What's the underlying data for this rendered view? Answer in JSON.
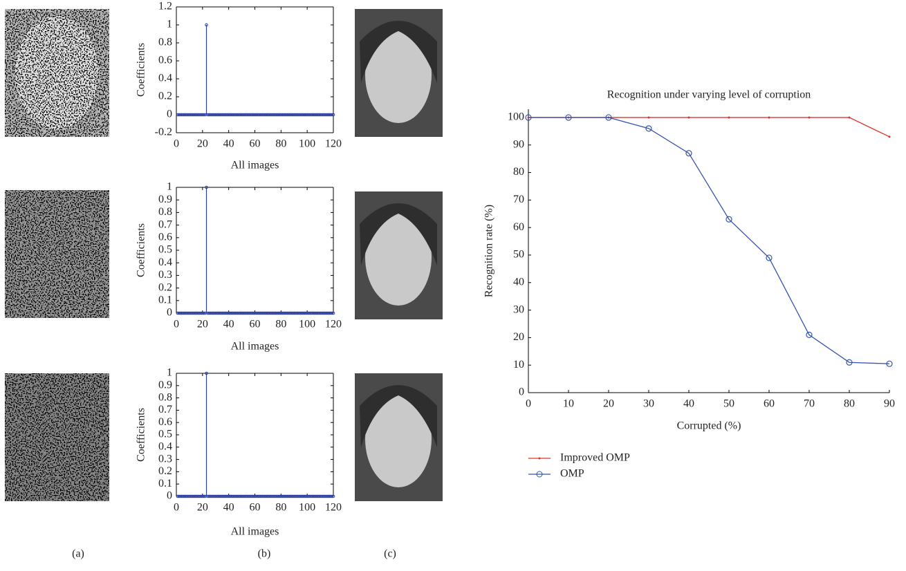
{
  "panel_labels": [
    "(a)",
    "(b)",
    "(c)"
  ],
  "chart_data": [
    {
      "type": "stem",
      "ylabel": "Coefficients",
      "xlabel": "All images",
      "color": "#2c3f9c",
      "x": [
        1,
        2,
        3,
        4,
        5,
        6,
        7,
        8,
        9,
        10,
        11,
        12,
        13,
        14,
        15,
        16,
        17,
        18,
        19,
        20,
        21,
        22,
        23,
        24,
        25,
        26,
        27,
        28,
        29,
        30,
        31,
        32,
        33,
        34,
        35,
        36,
        37,
        38,
        39,
        40,
        41,
        42,
        43,
        44,
        45,
        46,
        47,
        48,
        49,
        50,
        51,
        52,
        53,
        54,
        55,
        56,
        57,
        58,
        59,
        60,
        61,
        62,
        63,
        64,
        65,
        66,
        67,
        68,
        69,
        70,
        71,
        72,
        73,
        74,
        75,
        76,
        77,
        78,
        79,
        80,
        81,
        82,
        83,
        84,
        85,
        86,
        87,
        88,
        89,
        90,
        91,
        92,
        93,
        94,
        95,
        96,
        97,
        98,
        99,
        100,
        101,
        102,
        103,
        104,
        105,
        106,
        107,
        108,
        109,
        110,
        111,
        112,
        113,
        114,
        115,
        116,
        117,
        118,
        119,
        120
      ],
      "values": [
        0,
        0,
        0,
        0,
        0,
        0,
        0,
        0,
        0,
        0,
        0,
        0,
        0,
        0,
        0,
        0,
        0,
        0,
        0,
        0,
        0,
        0,
        1,
        0,
        0,
        0,
        0,
        0,
        0,
        0,
        0,
        0,
        0,
        0,
        0,
        0,
        0,
        0,
        0,
        0,
        0,
        0,
        0,
        0,
        0,
        0,
        0,
        0,
        0,
        0,
        0,
        0,
        0,
        0,
        0,
        0,
        0,
        0,
        0,
        0,
        0,
        0,
        0,
        0,
        0,
        0,
        0,
        0,
        0,
        0,
        0,
        0,
        0,
        0,
        0,
        0,
        0,
        0,
        0,
        0,
        0,
        0,
        0,
        0,
        0,
        0,
        0,
        0,
        0,
        0,
        0,
        0,
        0,
        0,
        0,
        0,
        0,
        0,
        0,
        0,
        0,
        0,
        0,
        0,
        0,
        0,
        0,
        0,
        0,
        0,
        0,
        0,
        0,
        0,
        0,
        0,
        0,
        0,
        0,
        0
      ],
      "xlim": [
        0,
        120
      ],
      "xticks": [
        0,
        20,
        40,
        60,
        80,
        100,
        120
      ],
      "ylim": [
        -0.2,
        1.2
      ],
      "yticks": [
        -0.2,
        0,
        0.2,
        0.4,
        0.6,
        0.8,
        1,
        1.2
      ]
    },
    {
      "type": "stem",
      "ylabel": "Coefficients",
      "xlabel": "All images",
      "color": "#2c3f9c",
      "x": [
        1,
        2,
        3,
        4,
        5,
        6,
        7,
        8,
        9,
        10,
        11,
        12,
        13,
        14,
        15,
        16,
        17,
        18,
        19,
        20,
        21,
        22,
        23,
        24,
        25,
        26,
        27,
        28,
        29,
        30,
        31,
        32,
        33,
        34,
        35,
        36,
        37,
        38,
        39,
        40,
        41,
        42,
        43,
        44,
        45,
        46,
        47,
        48,
        49,
        50,
        51,
        52,
        53,
        54,
        55,
        56,
        57,
        58,
        59,
        60,
        61,
        62,
        63,
        64,
        65,
        66,
        67,
        68,
        69,
        70,
        71,
        72,
        73,
        74,
        75,
        76,
        77,
        78,
        79,
        80,
        81,
        82,
        83,
        84,
        85,
        86,
        87,
        88,
        89,
        90,
        91,
        92,
        93,
        94,
        95,
        96,
        97,
        98,
        99,
        100,
        101,
        102,
        103,
        104,
        105,
        106,
        107,
        108,
        109,
        110,
        111,
        112,
        113,
        114,
        115,
        116,
        117,
        118,
        119,
        120
      ],
      "values": [
        0,
        0,
        0,
        0,
        0,
        0,
        0,
        0,
        0,
        0,
        0,
        0,
        0,
        0,
        0,
        0,
        0,
        0,
        0,
        0,
        0,
        0,
        1,
        0,
        0,
        0,
        0,
        0,
        0,
        0,
        0,
        0,
        0,
        0,
        0,
        0,
        0,
        0,
        0,
        0,
        0,
        0,
        0,
        0,
        0,
        0,
        0,
        0,
        0,
        0,
        0,
        0,
        0,
        0,
        0,
        0,
        0,
        0,
        0,
        0,
        0,
        0,
        0,
        0,
        0,
        0,
        0,
        0,
        0,
        0,
        0,
        0,
        0,
        0,
        0,
        0,
        0,
        0,
        0,
        0,
        0,
        0,
        0,
        0,
        0,
        0,
        0,
        0,
        0,
        0,
        0,
        0,
        0,
        0,
        0,
        0,
        0,
        0,
        0,
        0,
        0,
        0,
        0,
        0,
        0,
        0,
        0,
        0,
        0,
        0,
        0,
        0,
        0,
        0,
        0,
        0,
        0,
        0,
        0,
        0
      ],
      "xlim": [
        0,
        120
      ],
      "xticks": [
        0,
        20,
        40,
        60,
        80,
        100,
        120
      ],
      "ylim": [
        0,
        1
      ],
      "yticks": [
        0,
        0.1,
        0.2,
        0.3,
        0.4,
        0.5,
        0.6,
        0.7,
        0.8,
        0.9,
        1
      ]
    },
    {
      "type": "stem",
      "ylabel": "Coefficients",
      "xlabel": "All images",
      "color": "#2c3f9c",
      "x": [
        1,
        2,
        3,
        4,
        5,
        6,
        7,
        8,
        9,
        10,
        11,
        12,
        13,
        14,
        15,
        16,
        17,
        18,
        19,
        20,
        21,
        22,
        23,
        24,
        25,
        26,
        27,
        28,
        29,
        30,
        31,
        32,
        33,
        34,
        35,
        36,
        37,
        38,
        39,
        40,
        41,
        42,
        43,
        44,
        45,
        46,
        47,
        48,
        49,
        50,
        51,
        52,
        53,
        54,
        55,
        56,
        57,
        58,
        59,
        60,
        61,
        62,
        63,
        64,
        65,
        66,
        67,
        68,
        69,
        70,
        71,
        72,
        73,
        74,
        75,
        76,
        77,
        78,
        79,
        80,
        81,
        82,
        83,
        84,
        85,
        86,
        87,
        88,
        89,
        90,
        91,
        92,
        93,
        94,
        95,
        96,
        97,
        98,
        99,
        100,
        101,
        102,
        103,
        104,
        105,
        106,
        107,
        108,
        109,
        110,
        111,
        112,
        113,
        114,
        115,
        116,
        117,
        118,
        119,
        120
      ],
      "values": [
        0,
        0,
        0,
        0,
        0,
        0,
        0,
        0,
        0,
        0,
        0,
        0,
        0,
        0,
        0,
        0,
        0,
        0,
        0,
        0,
        0,
        0,
        1,
        0,
        0,
        0,
        0,
        0,
        0,
        0,
        0,
        0,
        0,
        0,
        0,
        0,
        0,
        0,
        0,
        0,
        0,
        0,
        0,
        0,
        0,
        0,
        0,
        0,
        0,
        0,
        0,
        0,
        0,
        0,
        0,
        0,
        0,
        0,
        0,
        0,
        0,
        0,
        0,
        0,
        0,
        0,
        0,
        0,
        0,
        0,
        0,
        0,
        0,
        0,
        0,
        0,
        0,
        0,
        0,
        0,
        0,
        0,
        0,
        0,
        0,
        0,
        0,
        0,
        0,
        0,
        0,
        0,
        0,
        0,
        0,
        0,
        0,
        0,
        0,
        0,
        0,
        0,
        0,
        0,
        0,
        0,
        0,
        0,
        0,
        0,
        0,
        0,
        0,
        0,
        0,
        0,
        0,
        0,
        0,
        0
      ],
      "xlim": [
        0,
        120
      ],
      "xticks": [
        0,
        20,
        40,
        60,
        80,
        100,
        120
      ],
      "ylim": [
        0,
        1
      ],
      "yticks": [
        0,
        0.1,
        0.2,
        0.3,
        0.4,
        0.5,
        0.6,
        0.7,
        0.8,
        0.9,
        1
      ]
    },
    {
      "type": "line",
      "title": "Recognition under varying level of corruption",
      "xlabel": "Corrupted (%)",
      "ylabel": "Recognition rate (%)",
      "x": [
        0,
        10,
        20,
        30,
        40,
        50,
        60,
        70,
        80,
        90
      ],
      "series": [
        {
          "name": "Improved OMP",
          "color": "#e3312b",
          "marker": "dot",
          "values": [
            100,
            100,
            100,
            100,
            100,
            100,
            100,
            100,
            100,
            93
          ]
        },
        {
          "name": "OMP",
          "color": "#3552b0",
          "marker": "circle",
          "values": [
            100,
            100,
            100,
            96,
            87,
            63,
            49,
            21,
            11,
            10.5
          ]
        }
      ],
      "xlim": [
        0,
        90
      ],
      "xticks": [
        0,
        10,
        20,
        30,
        40,
        50,
        60,
        70,
        80,
        90
      ],
      "ylim": [
        0,
        103
      ],
      "yticks": [
        0,
        10,
        20,
        30,
        40,
        50,
        60,
        70,
        80,
        90,
        100
      ],
      "legend": "bottom-left"
    }
  ]
}
